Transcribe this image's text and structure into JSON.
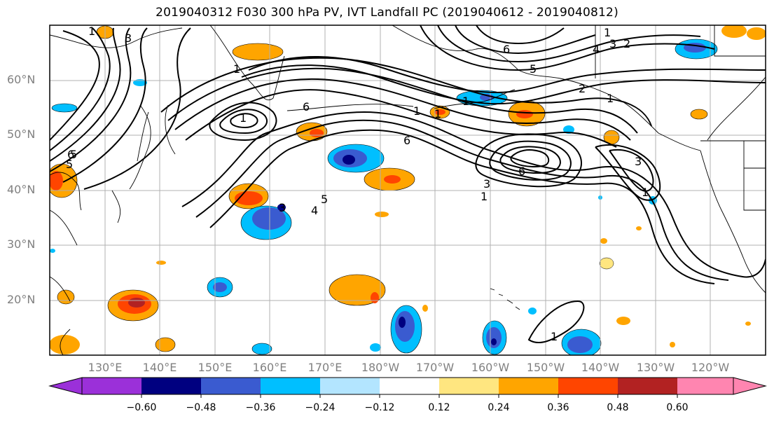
{
  "title": "2019040312 F030 300 hPa PV, IVT Landfall PC (2019040612 - 2019040812)",
  "map": {
    "lat_labels": [
      "60°N",
      "50°N",
      "40°N",
      "30°N",
      "20°N"
    ],
    "lon_labels": [
      "130°E",
      "140°E",
      "150°E",
      "160°E",
      "170°E",
      "180°W",
      "170°W",
      "160°W",
      "150°W",
      "140°W",
      "130°W",
      "120°W"
    ],
    "contour_labels": [
      "1",
      "3",
      "5",
      "6",
      "6",
      "5",
      "4",
      "2",
      "1",
      "3",
      "1",
      "6",
      "5",
      "3",
      "2",
      "1",
      "1",
      "6",
      "6",
      "3",
      "1",
      "5",
      "4",
      "1",
      "1",
      "1",
      "3",
      "1",
      "1"
    ]
  },
  "colorbar": {
    "ticks": [
      "−0.60",
      "−0.48",
      "−0.36",
      "−0.24",
      "−0.12",
      "0.12",
      "0.24",
      "0.36",
      "0.48",
      "0.60"
    ],
    "colors": [
      "#9b30d9",
      "#000080",
      "#3a5bd0",
      "#00bfff",
      "#b3e5ff",
      "#ffffff",
      "#ffe680",
      "#ffa500",
      "#ff4500",
      "#b22222",
      "#ff85b0"
    ]
  },
  "shading_colors": {
    "neg_strong": "#000080",
    "neg_mid": "#3a5bd0",
    "neg_light": "#00bfff",
    "neg_pale": "#b3e5ff",
    "pos_pale": "#ffe680",
    "pos_mid": "#ffa500",
    "pos_strong": "#ff4500",
    "pos_dark": "#b22222"
  }
}
